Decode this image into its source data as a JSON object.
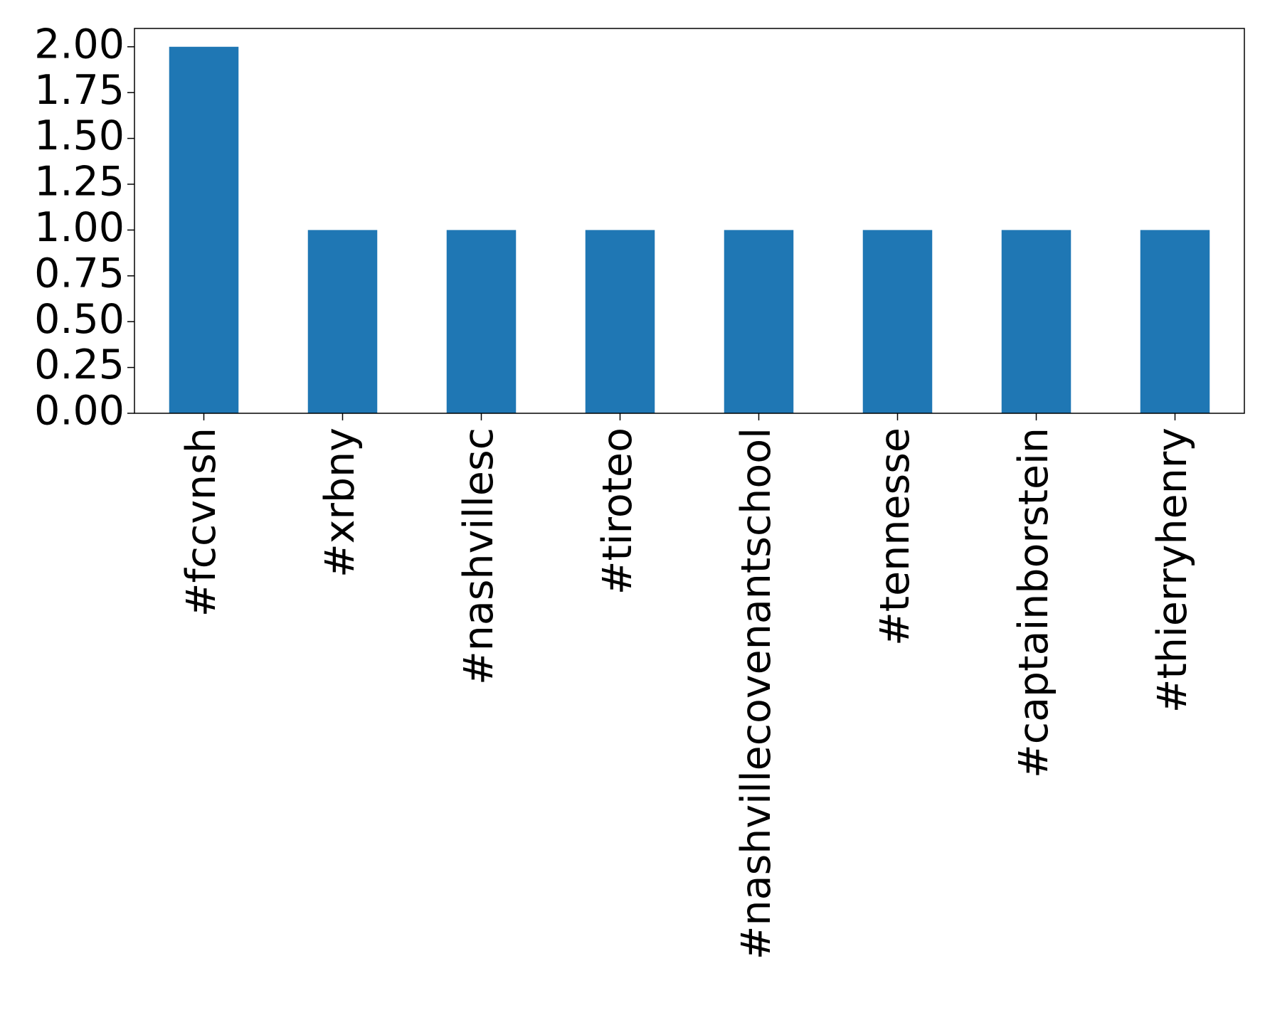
{
  "chart_data": {
    "type": "bar",
    "categories": [
      "#fccvnsh",
      "#xrbny",
      "#nashvillesc",
      "#tiroteo",
      "#nashvillecovenantschool",
      "#tennesse",
      "#captainborstein",
      "#thierryhenry"
    ],
    "values": [
      2,
      1,
      1,
      1,
      1,
      1,
      1,
      1
    ],
    "color": "#1f77b4",
    "ylim": [
      0,
      2.1
    ],
    "yticks": [
      {
        "value": 0,
        "label": "0.00"
      },
      {
        "value": 0.25,
        "label": "0.25"
      },
      {
        "value": 0.5,
        "label": "0.50"
      },
      {
        "value": 0.75,
        "label": "0.75"
      },
      {
        "value": 1,
        "label": "1.00"
      },
      {
        "value": 1.25,
        "label": "1.25"
      },
      {
        "value": 1.5,
        "label": "1.50"
      },
      {
        "value": 1.75,
        "label": "1.75"
      },
      {
        "value": 2,
        "label": "2.00"
      }
    ],
    "grid": false
  }
}
